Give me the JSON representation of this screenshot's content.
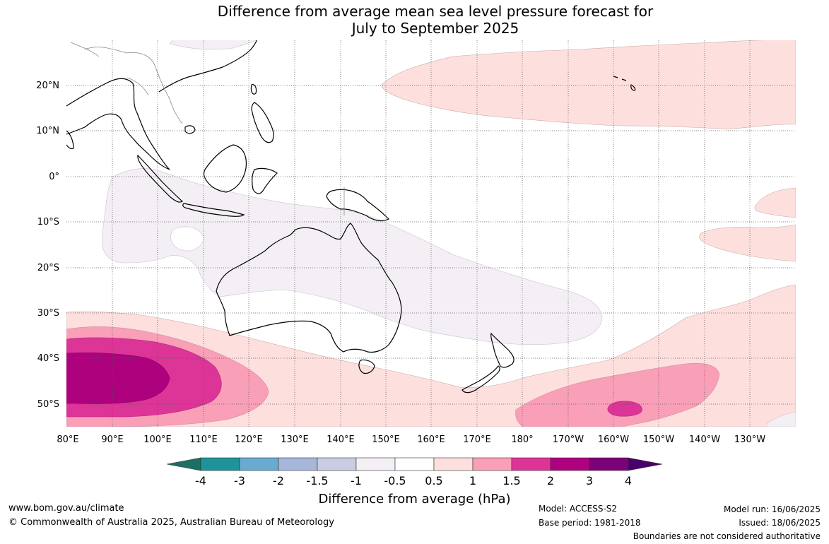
{
  "title_line1": "Difference from average mean sea level pressure forecast for",
  "title_line2": "July to September 2025",
  "lat_labels": [
    "20°N",
    "10°N",
    "0°",
    "10°S",
    "20°S",
    "30°S",
    "40°S",
    "50°S"
  ],
  "lon_labels": [
    "80°E",
    "90°E",
    "100°E",
    "110°E",
    "120°E",
    "130°E",
    "140°E",
    "150°E",
    "160°E",
    "170°E",
    "180°",
    "170°W",
    "160°W",
    "150°W",
    "140°W",
    "130°W"
  ],
  "legend": {
    "title": "Difference from average (hPa)",
    "labels": [
      "-4",
      "-3",
      "-2",
      "-1.5",
      "-1",
      "-0.5",
      "0.5",
      "1",
      "1.5",
      "2",
      "3",
      "4"
    ],
    "colors": [
      "#1b6f64",
      "#1e9399",
      "#69aad1",
      "#a6b7da",
      "#cacce2",
      "#f3eff5",
      "#ffffff",
      "#fde0dd",
      "#f99fb8",
      "#dd3497",
      "#ae017e",
      "#7a0177",
      "#49006a"
    ]
  },
  "footer": {
    "url": "www.bom.gov.au/climate",
    "copyright": "© Commonwealth of Australia 2025, Australian Bureau of Meteorology",
    "model": "Model: ACCESS-S2",
    "base_period": "Base period: 1981-2018",
    "model_run": "Model run: 16/06/2025",
    "issued": "Issued: 18/06/2025",
    "disclaimer": "Boundaries are not considered authoritative"
  }
}
